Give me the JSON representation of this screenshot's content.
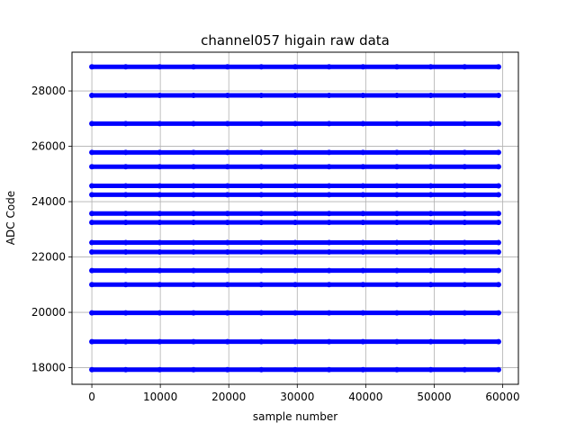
{
  "chart_data": {
    "type": "scatter",
    "title": "channel057 higain raw data",
    "xlabel": "sample number",
    "ylabel": "ADC Code",
    "xlim": [
      -2900,
      62300
    ],
    "ylim": [
      17400,
      29400
    ],
    "xticks": [
      0,
      10000,
      20000,
      30000,
      40000,
      50000,
      60000
    ],
    "yticks": [
      18000,
      20000,
      22000,
      24000,
      26000,
      28000
    ],
    "grid": true,
    "marker_color": "#0000ff",
    "x_range": [
      0,
      59400
    ],
    "series": [
      {
        "values": [
          17930,
          18940,
          19980,
          21000,
          21510,
          22180,
          22520,
          23250,
          23570,
          24250,
          24570,
          25260,
          25780,
          26820,
          27840,
          28870
        ]
      }
    ]
  }
}
